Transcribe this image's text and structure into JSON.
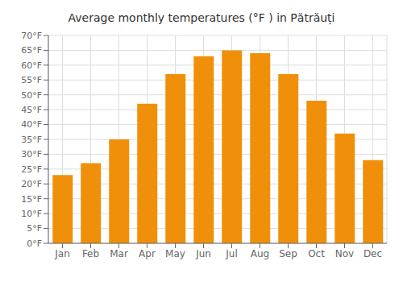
{
  "chart_data": {
    "type": "bar",
    "title": "Average monthly temperatures (°F ) in Pătrăuți",
    "categories": [
      "Jan",
      "Feb",
      "Mar",
      "Apr",
      "May",
      "Jun",
      "Jul",
      "Aug",
      "Sep",
      "Oct",
      "Nov",
      "Dec"
    ],
    "values": [
      23,
      27,
      35,
      47,
      57,
      63,
      65,
      64,
      57,
      48,
      37,
      28
    ],
    "color": "#F0900A",
    "ylim": [
      0,
      70
    ],
    "yticks": [
      {
        "value": 0,
        "label": "0°F"
      },
      {
        "value": 5,
        "label": "5°F"
      },
      {
        "value": 10,
        "label": "10°F"
      },
      {
        "value": 15,
        "label": "15°F"
      },
      {
        "value": 20,
        "label": "20°F"
      },
      {
        "value": 25,
        "label": "25°F"
      },
      {
        "value": 30,
        "label": "30°F"
      },
      {
        "value": 35,
        "label": "35°F"
      },
      {
        "value": 40,
        "label": "40°F"
      },
      {
        "value": 45,
        "label": "45°F"
      },
      {
        "value": 50,
        "label": "50°F"
      },
      {
        "value": 55,
        "label": "55°F"
      },
      {
        "value": 60,
        "label": "60°F"
      },
      {
        "value": 65,
        "label": "65°F"
      },
      {
        "value": 70,
        "label": "70°F"
      }
    ],
    "grid": true
  }
}
